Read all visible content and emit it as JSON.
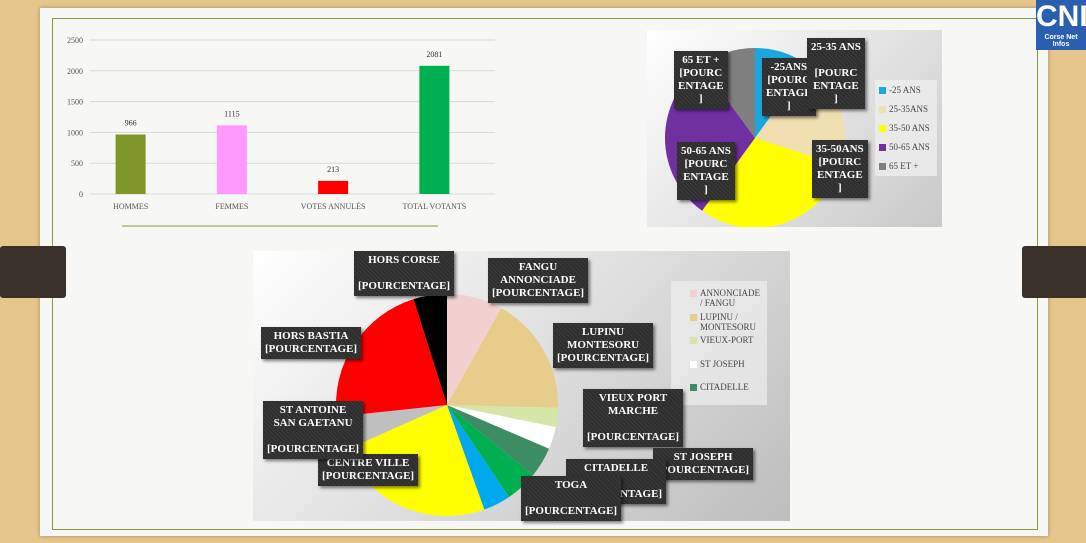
{
  "logo": {
    "title": "CNI",
    "subtitle": "Corse Net Infos"
  },
  "chart_data": [
    {
      "type": "bar",
      "title": "",
      "categories": [
        "HOMMES",
        "FEMMES",
        "VOTES ANNULÉS",
        "TOTAL VOTANTS"
      ],
      "values": [
        966,
        1115,
        213,
        2081
      ],
      "colors": [
        "#7f962a",
        "#ff99ff",
        "#ff0000",
        "#00b050"
      ],
      "yticks": [
        0,
        500,
        1000,
        1500,
        2000,
        2500
      ],
      "ylim": [
        0,
        2500
      ],
      "grid": true
    },
    {
      "type": "pie",
      "title": "",
      "slices": [
        {
          "name": "-25 ANS",
          "legend": "-25 ANS",
          "label": "-25ANS\n[POURC\nENTAGE\n]",
          "value": 10,
          "color": "#1aa7e0"
        },
        {
          "name": "25-35 ANS",
          "legend": "25-35ANS",
          "label": "25-35 ANS\n\n[POURC\nENTAGE\n]",
          "value": 20,
          "color": "#f0dfb0"
        },
        {
          "name": "35-50 ANS",
          "legend": "35-50 ANS",
          "label": "35-50ANS\n[POURC\nENTAGE\n]",
          "value": 30,
          "color": "#ffff00"
        },
        {
          "name": "50-65 ANS",
          "legend": "50-65 ANS",
          "label": "50-65 ANS\n[POURC\nENTAGE\n]",
          "value": 30,
          "color": "#7030a0"
        },
        {
          "name": "65 ET +",
          "legend": "65 ET +",
          "label": "65 ET +\n[POURC\nENTAGE\n]",
          "value": 10,
          "color": "#7f7f7f"
        }
      ],
      "legend_position": "right"
    },
    {
      "type": "pie",
      "title": "",
      "slices": [
        {
          "name": "ANNONCIADE / FANGU",
          "label": "FANGU\nANNONCIADE\n[POURCENTAGE]",
          "value": 8.2,
          "color": "#f2d0d0"
        },
        {
          "name": "LUPINU / MONTESORU",
          "label": "LUPINU\nMONTESORU\n[POURCENTAGE]",
          "value": 17.4,
          "color": "#e8cc8c"
        },
        {
          "name": "VIEUX-PORT",
          "label": "VIEUX PORT\nMARCHE\n\n[POURCENTAGE]",
          "value": 2.8,
          "color": "#d6e6a6"
        },
        {
          "name": "ST JOSEPH",
          "label": "ST JOSEPH\n[POURCENTAGE]",
          "value": 3.3,
          "color": "#ffffff"
        },
        {
          "name": "CITADELLE",
          "label": "CITADELLE\n\n[POURCENTAGE]",
          "value": 4.5,
          "color": "#3c8c64"
        },
        {
          "name": "",
          "label": "",
          "value": 4.7,
          "color": "#00b050"
        },
        {
          "name": "TOGA",
          "label": "TOGA\n\n[POURCENTAGE]",
          "value": 4,
          "color": "#00a8ec"
        },
        {
          "name": "CENTRE VILLE",
          "label": "CENTRE VILLE\n[POURCENTAGE]",
          "value": 24,
          "color": "#ffff00"
        },
        {
          "name": "ST ANTOINE SAN GAETANU",
          "label": "ST ANTOINE\nSAN GAETANU\n\n[POURCENTAGE]",
          "value": 5,
          "color": "#bfbfbf"
        },
        {
          "name": "HORS BASTIA",
          "label": "HORS BASTIA\n[POURCENTAGE]",
          "value": 22,
          "color": "#ff0000"
        },
        {
          "name": "HORS CORSE",
          "label": "HORS CORSE\n\n[POURCENTAGE]",
          "value": 4.9,
          "color": "#000000"
        }
      ],
      "legend_entries": [
        "ANNONCIADE / FANGU",
        "LUPINU / MONTESORU",
        "VIEUX-PORT",
        "ST JOSEPH",
        "CITADELLE"
      ],
      "legend_position": "right"
    }
  ]
}
